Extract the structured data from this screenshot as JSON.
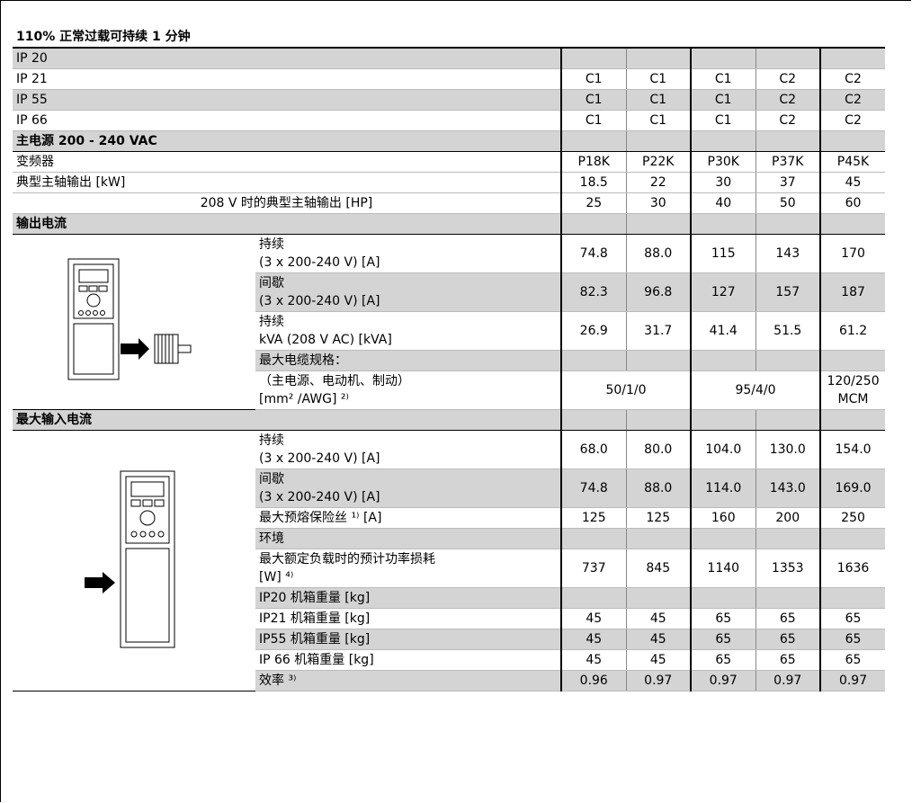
{
  "header": {
    "title": "110% 正常过载可持续 1 分钟"
  },
  "rows": [
    {
      "label": "IP 20",
      "shaded": true,
      "cells": []
    },
    {
      "label": "IP 21",
      "cells": [
        "C1",
        "C1",
        "C1",
        "C2",
        "C2"
      ]
    },
    {
      "label": "IP 55",
      "shaded": true,
      "cells": [
        "C1",
        "C1",
        "C1",
        "C2",
        "C2"
      ]
    },
    {
      "label": "IP 66",
      "cells": [
        "C1",
        "C1",
        "C1",
        "C2",
        "C2"
      ]
    },
    {
      "label": "主电源 200 - 240 VAC",
      "bold": true,
      "shaded": true,
      "cells": []
    },
    {
      "label": "变频器",
      "cells": [
        "P18K",
        "P22K",
        "P30K",
        "P37K",
        "P45K"
      ]
    },
    {
      "label": "典型主轴输出 [kW]",
      "cells": [
        "18.5",
        "22",
        "30",
        "37",
        "45"
      ]
    },
    {
      "label": "208 V 时的典型主轴输出 [HP]",
      "align": "center",
      "cells": [
        "25",
        "30",
        "40",
        "50",
        "60"
      ]
    },
    {
      "label": "输出电流",
      "bold": true,
      "shaded": true,
      "cells": []
    },
    {
      "sub": [
        "持续",
        "(3 x 200-240 V) [A]"
      ],
      "cells": [
        "74.8",
        "88.0",
        "115",
        "143",
        "170"
      ]
    },
    {
      "sub": [
        "间歇",
        "(3 x 200-240 V) [A]"
      ],
      "shaded": true,
      "cells": [
        "82.3",
        "96.8",
        "127",
        "157",
        "187"
      ]
    },
    {
      "sub": [
        "持续",
        "kVA (208 V AC) [kVA]"
      ],
      "cells": [
        "26.9",
        "31.7",
        "41.4",
        "51.5",
        "61.2"
      ]
    },
    {
      "sub": [
        "最大电缆规格："
      ],
      "shaded": true,
      "cells": []
    },
    {
      "sub": [
        "（主电源、电动机、制动）",
        "[mm² /AWG] ²⁾"
      ],
      "cells": [
        "50/1/0",
        "95/4/0",
        "120/250 MCM"
      ]
    },
    {
      "label": "最大输入电流",
      "bold": true,
      "shaded": true,
      "cells": []
    },
    {
      "sub": [
        "持续",
        "(3 x 200-240 V) [A]"
      ],
      "cells": [
        "68.0",
        "80.0",
        "104.0",
        "130.0",
        "154.0"
      ]
    },
    {
      "sub": [
        "间歇",
        "(3 x 200-240 V) [A]"
      ],
      "shaded": true,
      "cells": [
        "74.8",
        "88.0",
        "114.0",
        "143.0",
        "169.0"
      ]
    },
    {
      "sub": [
        "最大预熔保险丝 ¹⁾ [A]"
      ],
      "cells": [
        "125",
        "125",
        "160",
        "200",
        "250"
      ]
    },
    {
      "sub": [
        "环境"
      ],
      "shaded": true,
      "cells": []
    },
    {
      "sub": [
        "最大额定负载时的预计功率损耗",
        "[W] ⁴⁾"
      ],
      "cells": [
        "737",
        "845",
        "1140",
        "1353",
        "1636"
      ]
    },
    {
      "sub": [
        "IP20 机箱重量 [kg]"
      ],
      "shaded": true,
      "cells": []
    },
    {
      "sub": [
        "IP21 机箱重量 [kg]"
      ],
      "cells": [
        "45",
        "45",
        "65",
        "65",
        "65"
      ]
    },
    {
      "sub": [
        "IP55 机箱重量 [kg]"
      ],
      "shaded": true,
      "cells": [
        "45",
        "45",
        "65",
        "65",
        "65"
      ]
    },
    {
      "sub": [
        "IP 66 机箱重量 [kg]"
      ],
      "cells": [
        "45",
        "45",
        "65",
        "65",
        "65"
      ]
    },
    {
      "sub": [
        "效率 ³⁾"
      ],
      "shaded": true,
      "cells": [
        "0.96",
        "0.97",
        "0.97",
        "0.97",
        "0.97"
      ]
    }
  ]
}
